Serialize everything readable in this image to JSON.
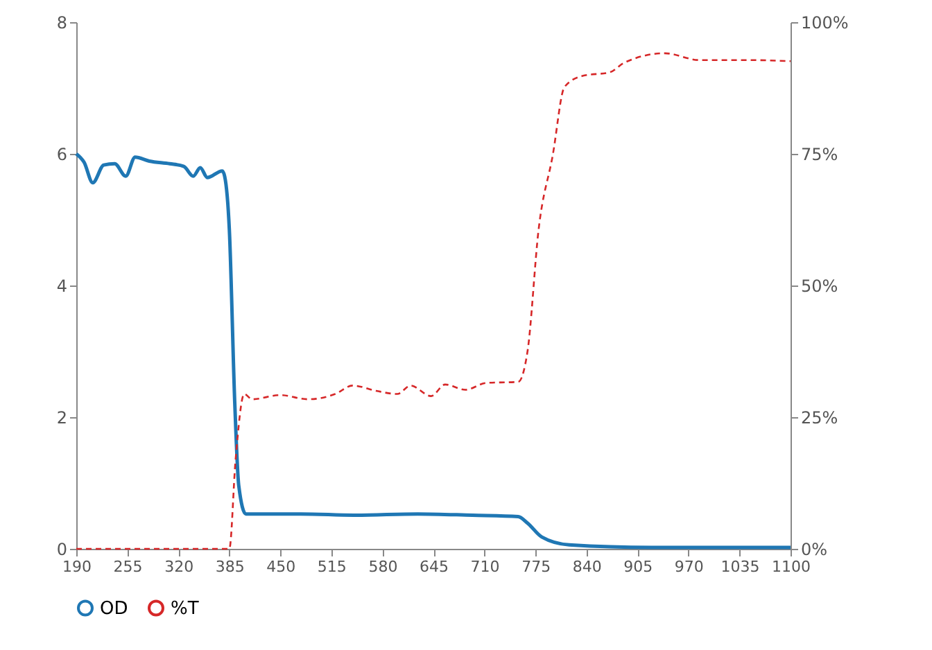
{
  "chart_data": {
    "type": "line",
    "xlim": [
      190,
      1100
    ],
    "xticks": [
      190,
      255,
      320,
      385,
      450,
      515,
      580,
      645,
      710,
      775,
      840,
      905,
      970,
      1035,
      1100
    ],
    "ylim": [
      0,
      8
    ],
    "yticks": [
      0,
      2,
      4,
      6,
      8
    ],
    "y2lim": [
      0,
      100
    ],
    "y2ticks": [
      {
        "value": 0,
        "label": "0%"
      },
      {
        "value": 25,
        "label": "25%"
      },
      {
        "value": 50,
        "label": "50%"
      },
      {
        "value": 75,
        "label": "75%"
      },
      {
        "value": 100,
        "label": "100%"
      }
    ],
    "grid": false,
    "legend": "bottom",
    "marker": "none",
    "series": [
      {
        "name": "OD",
        "color": "#1f77b4",
        "line_style": "solid",
        "x": [
          190,
          200,
          211,
          225,
          239,
          253,
          265,
          283,
          309,
          327,
          339,
          348,
          357,
          376,
          379,
          385,
          392,
          397,
          406,
          423,
          476,
          546,
          625,
          695,
          753,
          765,
          783,
          818,
          923,
          1100
        ],
        "values": [
          6.0,
          5.87,
          5.56,
          5.83,
          5.85,
          5.66,
          5.95,
          5.89,
          5.85,
          5.81,
          5.66,
          5.79,
          5.64,
          5.74,
          5.66,
          4.85,
          2.19,
          0.96,
          0.53,
          0.53,
          0.53,
          0.51,
          0.53,
          0.51,
          0.49,
          0.39,
          0.18,
          0.06,
          0.02,
          0.02
        ]
      },
      {
        "name": "%T",
        "color": "#d62728",
        "line_style": "dashed",
        "axis": "y2",
        "x": [
          190,
          385,
          393,
          404,
          414,
          450,
          485,
          520,
          542,
          572,
          599,
          616,
          642,
          660,
          686,
          712,
          753,
          765,
          779,
          797,
          812,
          835,
          870,
          888,
          940,
          984,
          1046,
          1100
        ],
        "values": [
          0,
          0,
          17,
          29.4,
          28.4,
          29.2,
          28.4,
          29.4,
          31,
          30,
          29.4,
          31,
          29,
          31.2,
          30.2,
          31.5,
          31.7,
          37.6,
          60.6,
          74.7,
          87.7,
          89.8,
          90.5,
          92.3,
          94.1,
          92.8,
          92.8,
          92.6
        ]
      }
    ]
  }
}
